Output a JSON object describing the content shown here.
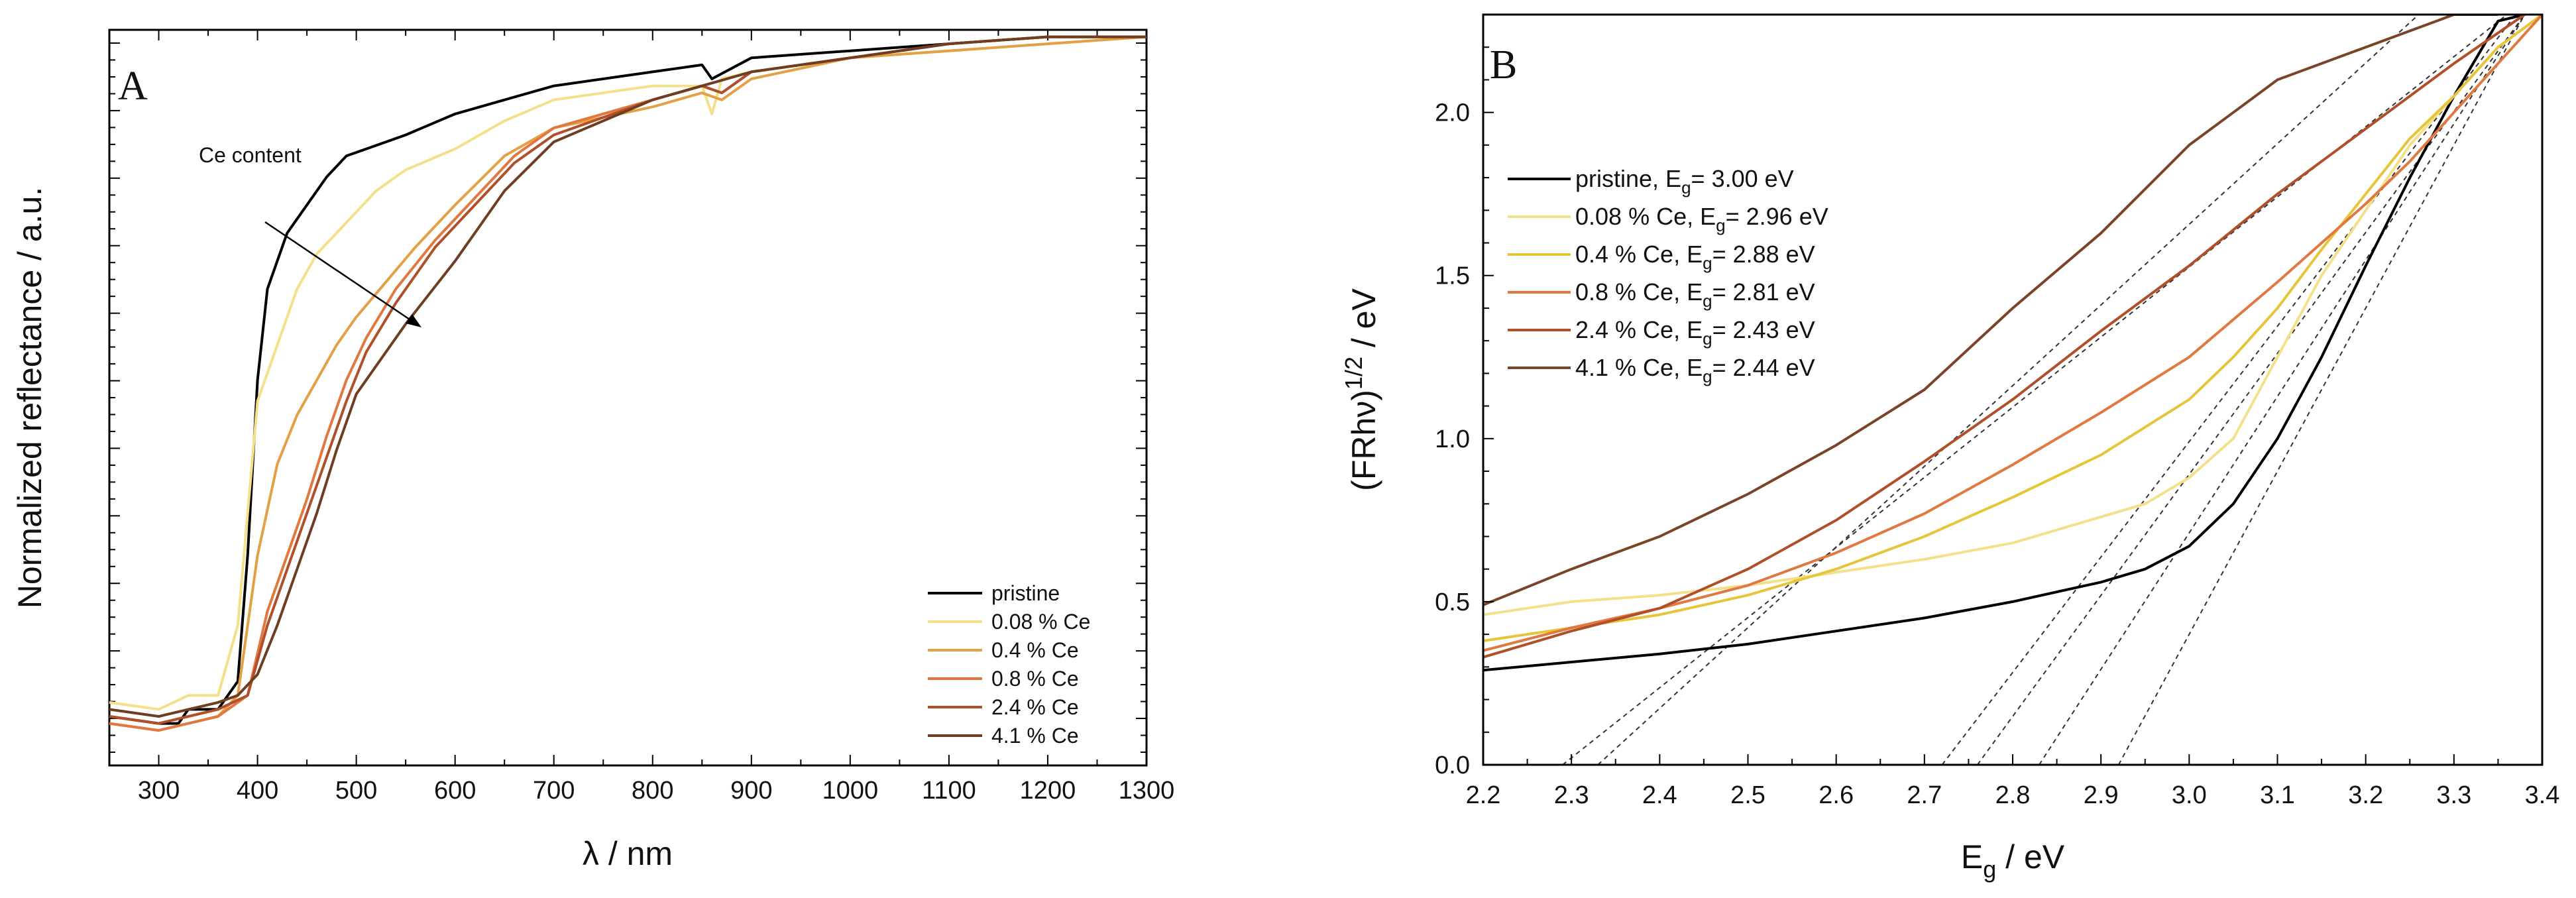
{
  "chart_data": [
    {
      "type": "line",
      "panel": "A",
      "xlabel": "λ / nm",
      "ylabel": "Normalized reflectance / a.u.",
      "xlim": [
        250,
        1300
      ],
      "ylim": [
        0,
        1.05
      ],
      "xticks": [
        300,
        400,
        500,
        600,
        700,
        800,
        900,
        1000,
        1100,
        1200,
        1300
      ],
      "annotation": {
        "text": "Ce content",
        "arrow_from": [
          420,
          0.72
        ],
        "arrow_to": [
          420,
          0.6
        ]
      },
      "legend_position": "bottom-right",
      "series": [
        {
          "name": "pristine",
          "color": "#000000",
          "x": [
            250,
            300,
            320,
            330,
            360,
            380,
            390,
            400,
            410,
            430,
            450,
            470,
            490,
            510,
            550,
            600,
            650,
            700,
            800,
            850,
            860,
            900,
            1000,
            1100,
            1200,
            1300
          ],
          "y": [
            0.07,
            0.06,
            0.06,
            0.08,
            0.08,
            0.12,
            0.3,
            0.55,
            0.68,
            0.76,
            0.8,
            0.84,
            0.87,
            0.88,
            0.9,
            0.93,
            0.95,
            0.97,
            0.99,
            1.0,
            0.98,
            1.01,
            1.02,
            1.03,
            1.04,
            1.04
          ]
        },
        {
          "name": "0.08 % Ce",
          "color": "#f2e08a",
          "x": [
            250,
            300,
            330,
            360,
            380,
            400,
            420,
            440,
            460,
            480,
            500,
            520,
            550,
            600,
            650,
            700,
            800,
            850,
            860,
            870,
            900,
            1000,
            1100,
            1200,
            1300
          ],
          "y": [
            0.09,
            0.08,
            0.1,
            0.1,
            0.2,
            0.52,
            0.6,
            0.68,
            0.73,
            0.76,
            0.79,
            0.82,
            0.85,
            0.88,
            0.92,
            0.95,
            0.97,
            0.97,
            0.93,
            0.98,
            0.99,
            1.01,
            1.02,
            1.03,
            1.04
          ]
        },
        {
          "name": "0.4 % Ce",
          "color": "#e3a044",
          "x": [
            250,
            300,
            330,
            360,
            380,
            400,
            420,
            440,
            460,
            480,
            500,
            530,
            560,
            600,
            650,
            700,
            800,
            850,
            870,
            900,
            1000,
            1100,
            1200,
            1300
          ],
          "y": [
            0.06,
            0.05,
            0.06,
            0.07,
            0.1,
            0.3,
            0.43,
            0.5,
            0.55,
            0.6,
            0.64,
            0.69,
            0.74,
            0.8,
            0.87,
            0.91,
            0.94,
            0.96,
            0.95,
            0.98,
            1.01,
            1.02,
            1.03,
            1.04
          ]
        },
        {
          "name": "0.8 % Ce",
          "color": "#e07840",
          "x": [
            250,
            300,
            330,
            360,
            390,
            410,
            430,
            450,
            470,
            490,
            510,
            540,
            580,
            620,
            660,
            700,
            800,
            850,
            870,
            900,
            1000,
            1100,
            1200,
            1300
          ],
          "y": [
            0.06,
            0.05,
            0.06,
            0.07,
            0.1,
            0.22,
            0.3,
            0.38,
            0.47,
            0.55,
            0.61,
            0.68,
            0.75,
            0.81,
            0.87,
            0.91,
            0.95,
            0.97,
            0.96,
            0.99,
            1.01,
            1.03,
            1.04,
            1.04
          ]
        },
        {
          "name": "2.4 % Ce",
          "color": "#b0502a",
          "x": [
            250,
            300,
            330,
            360,
            390,
            410,
            430,
            450,
            470,
            490,
            510,
            540,
            580,
            620,
            660,
            700,
            800,
            850,
            870,
            900,
            1000,
            1100,
            1200,
            1300
          ],
          "y": [
            0.07,
            0.06,
            0.07,
            0.08,
            0.1,
            0.2,
            0.28,
            0.36,
            0.44,
            0.52,
            0.59,
            0.66,
            0.74,
            0.8,
            0.86,
            0.9,
            0.95,
            0.97,
            0.96,
            0.99,
            1.01,
            1.03,
            1.04,
            1.04
          ]
        },
        {
          "name": "4.1 % Ce",
          "color": "#6e3d22",
          "x": [
            250,
            300,
            330,
            360,
            380,
            400,
            420,
            440,
            460,
            480,
            500,
            520,
            550,
            600,
            650,
            700,
            800,
            850,
            900,
            1000,
            1100,
            1200,
            1300
          ],
          "y": [
            0.08,
            0.07,
            0.08,
            0.09,
            0.1,
            0.13,
            0.2,
            0.28,
            0.36,
            0.45,
            0.53,
            0.57,
            0.63,
            0.72,
            0.82,
            0.89,
            0.95,
            0.97,
            0.99,
            1.01,
            1.03,
            1.04,
            1.04
          ]
        }
      ]
    },
    {
      "type": "line",
      "panel": "B",
      "xlabel": "E",
      "xlabel_sub": "g",
      "xlabel_unit": " / eV",
      "ylabel": "(FRhν)",
      "ylabel_sup": "1/2",
      "ylabel_unit": " / eV",
      "xlim": [
        2.2,
        3.4
      ],
      "ylim": [
        0.0,
        2.3
      ],
      "xticks": [
        2.2,
        2.3,
        2.4,
        2.5,
        2.6,
        2.7,
        2.8,
        2.9,
        3.0,
        3.1,
        3.2,
        3.3,
        3.4
      ],
      "xtick_labels": [
        "2.2",
        "2.3",
        "2.4",
        "2.5",
        "2.6",
        "2.7",
        "2.8",
        "2.9",
        "3.0",
        "3.1",
        "3.2",
        "3.3",
        "3.4"
      ],
      "yticks": [
        0.0,
        0.5,
        1.0,
        1.5,
        2.0
      ],
      "ytick_labels": [
        "0.0",
        "0.5",
        "1.0",
        "1.5",
        "2.0"
      ],
      "legend_position": "top-left",
      "series": [
        {
          "name": "pristine",
          "legend_prefix": "pristine, E",
          "legend_sub": "g",
          "legend_suffix": "= 3.00 eV",
          "color": "#000000",
          "x": [
            2.2,
            2.4,
            2.5,
            2.6,
            2.7,
            2.8,
            2.9,
            2.95,
            3.0,
            3.05,
            3.1,
            3.15,
            3.2,
            3.25,
            3.3,
            3.35,
            3.38
          ],
          "y": [
            0.29,
            0.34,
            0.37,
            0.41,
            0.45,
            0.5,
            0.56,
            0.6,
            0.67,
            0.8,
            1.0,
            1.25,
            1.53,
            1.8,
            2.05,
            2.28,
            2.3
          ]
        },
        {
          "name": "0.08 % Ce",
          "legend_prefix": "0.08 % Ce, E",
          "legend_sub": "g",
          "legend_suffix": "= 2.96 eV",
          "color": "#f2e08a",
          "x": [
            2.2,
            2.3,
            2.4,
            2.5,
            2.6,
            2.7,
            2.8,
            2.9,
            2.95,
            3.0,
            3.05,
            3.1,
            3.15,
            3.2,
            3.25,
            3.3,
            3.35,
            3.4
          ],
          "y": [
            0.46,
            0.5,
            0.52,
            0.55,
            0.59,
            0.63,
            0.68,
            0.76,
            0.8,
            0.88,
            1.0,
            1.25,
            1.5,
            1.7,
            1.9,
            2.05,
            2.2,
            2.3
          ]
        },
        {
          "name": "0.4 % Ce",
          "legend_prefix": "0.4 % Ce, E",
          "legend_sub": "g",
          "legend_suffix": "= 2.88 eV",
          "color": "#e6c53a",
          "x": [
            2.2,
            2.3,
            2.4,
            2.5,
            2.6,
            2.7,
            2.8,
            2.9,
            3.0,
            3.05,
            3.1,
            3.15,
            3.2,
            3.25,
            3.3,
            3.35,
            3.4
          ],
          "y": [
            0.38,
            0.42,
            0.46,
            0.52,
            0.6,
            0.7,
            0.82,
            0.95,
            1.12,
            1.25,
            1.4,
            1.58,
            1.75,
            1.92,
            2.05,
            2.2,
            2.3
          ]
        },
        {
          "name": "0.8 % Ce",
          "legend_prefix": "0.8 % Ce, E",
          "legend_sub": "g",
          "legend_suffix": "= 2.81 eV",
          "color": "#e07840",
          "x": [
            2.2,
            2.3,
            2.4,
            2.5,
            2.6,
            2.7,
            2.8,
            2.9,
            3.0,
            3.1,
            3.2,
            3.25,
            3.3,
            3.35,
            3.4
          ],
          "y": [
            0.35,
            0.42,
            0.48,
            0.55,
            0.65,
            0.77,
            0.92,
            1.08,
            1.25,
            1.48,
            1.72,
            1.85,
            2.0,
            2.15,
            2.3
          ]
        },
        {
          "name": "2.4 % Ce",
          "legend_prefix": "2.4 % Ce, E",
          "legend_sub": "g",
          "legend_suffix": "= 2.43 eV",
          "color": "#b0502a",
          "x": [
            2.2,
            2.3,
            2.4,
            2.5,
            2.6,
            2.7,
            2.8,
            2.9,
            3.0,
            3.1,
            3.2,
            3.3,
            3.38
          ],
          "y": [
            0.33,
            0.41,
            0.48,
            0.6,
            0.75,
            0.93,
            1.12,
            1.33,
            1.53,
            1.75,
            1.95,
            2.15,
            2.3
          ]
        },
        {
          "name": "4.1 % Ce",
          "legend_prefix": "4.1 % Ce, E",
          "legend_sub": "g",
          "legend_suffix": "= 2.44 eV",
          "color": "#7a4428",
          "x": [
            2.2,
            2.3,
            2.4,
            2.5,
            2.6,
            2.7,
            2.8,
            2.9,
            3.0,
            3.05,
            3.1,
            3.2,
            3.3,
            3.35
          ],
          "y": [
            0.49,
            0.6,
            0.7,
            0.83,
            0.98,
            1.15,
            1.4,
            1.63,
            1.9,
            2.0,
            2.1,
            2.2,
            2.3,
            2.3
          ]
        }
      ],
      "tangent_lines": [
        {
          "x": [
            2.29,
            3.36
          ],
          "y": [
            0.0,
            2.3
          ]
        },
        {
          "x": [
            2.33,
            3.26
          ],
          "y": [
            0.0,
            2.3
          ]
        },
        {
          "x": [
            2.72,
            3.37
          ],
          "y": [
            0.0,
            2.3
          ]
        },
        {
          "x": [
            2.76,
            3.38
          ],
          "y": [
            0.0,
            2.3
          ]
        },
        {
          "x": [
            2.83,
            3.38
          ],
          "y": [
            0.0,
            2.3
          ]
        },
        {
          "x": [
            2.92,
            3.38
          ],
          "y": [
            0.0,
            2.3
          ]
        }
      ]
    }
  ]
}
